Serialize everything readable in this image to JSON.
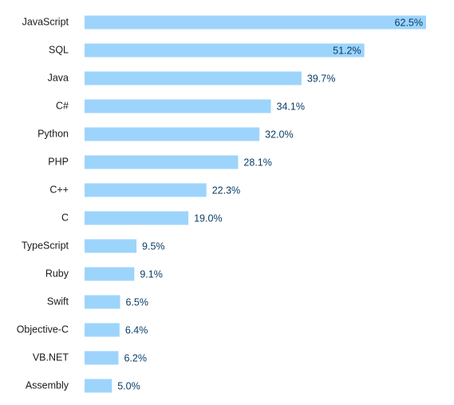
{
  "chart_data": {
    "type": "bar",
    "orientation": "horizontal",
    "title": "",
    "xlabel": "",
    "ylabel": "",
    "xlim": [
      0,
      62.5
    ],
    "grid": false,
    "legend": "none",
    "value_suffix": "%",
    "bar_color": "#9dd4fb",
    "label_color": "#0b3d66",
    "categories": [
      "JavaScript",
      "SQL",
      "Java",
      "C#",
      "Python",
      "PHP",
      "C++",
      "C",
      "TypeScript",
      "Ruby",
      "Swift",
      "Objective-C",
      "VB.NET",
      "Assembly"
    ],
    "values": [
      62.5,
      51.2,
      39.7,
      34.1,
      32.0,
      28.1,
      22.3,
      19.0,
      9.5,
      9.1,
      6.5,
      6.4,
      6.2,
      5.0
    ],
    "value_labels": [
      "62.5%",
      "51.2%",
      "39.7%",
      "34.1%",
      "32.0%",
      "28.1%",
      "22.3%",
      "19.0%",
      "9.5%",
      "9.1%",
      "6.5%",
      "6.4%",
      "6.2%",
      "5.0%"
    ]
  }
}
